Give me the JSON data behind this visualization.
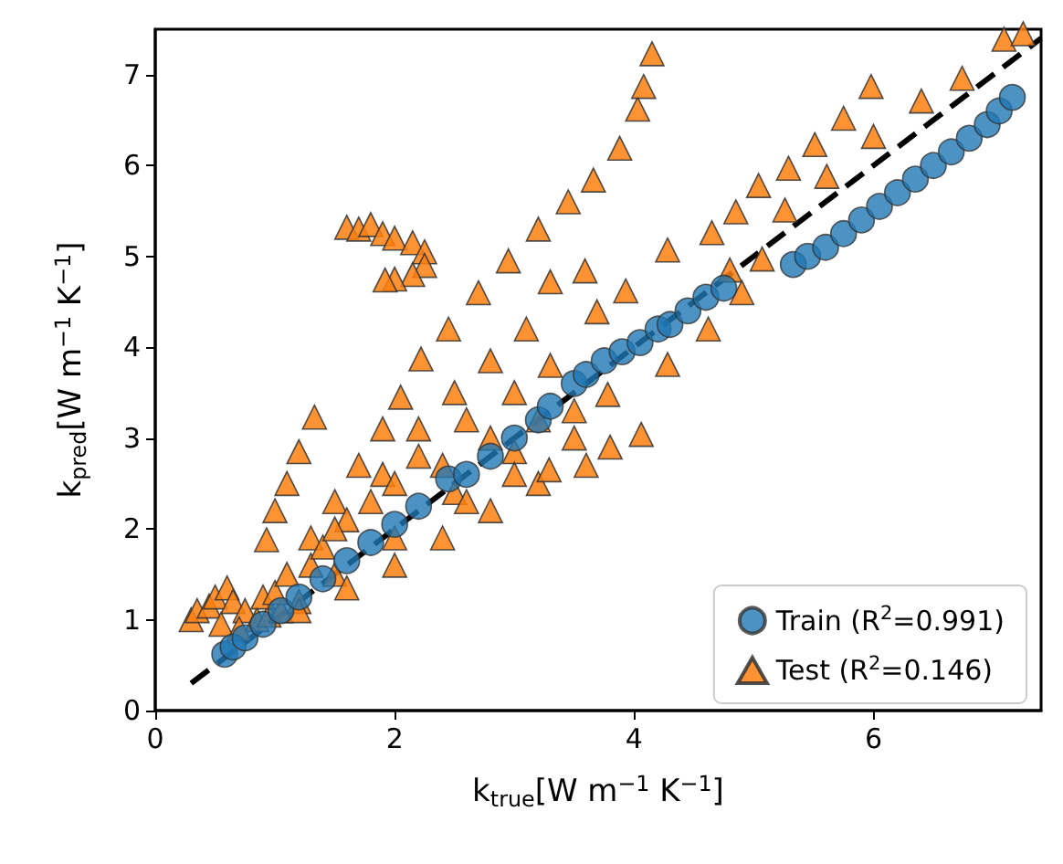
{
  "chart_data": {
    "type": "scatter",
    "xlabel": "k$_{true}$[W m$^{−1}$ K$^{−1}$]",
    "ylabel": "k$_{pred}$[W m$^{−1}$ K$^{−1}$]",
    "xlim": [
      0,
      7.4
    ],
    "ylim": [
      0,
      7.5
    ],
    "xticks": [
      0,
      2,
      4,
      6
    ],
    "yticks": [
      0,
      1,
      2,
      3,
      4,
      5,
      6,
      7
    ],
    "grid": false,
    "legend": "bottom right",
    "series": [
      {
        "type": "line",
        "color": "#000000",
        "line_style": "dashed",
        "marker": "none",
        "x": [
          0.3,
          7.4
        ],
        "values": [
          0.3,
          7.4
        ]
      },
      {
        "name": "Test (R$^{2}$=0.146)",
        "color": "#ff7f0e",
        "marker": "triangle",
        "x": [
          0.3,
          0.35,
          0.45,
          0.5,
          0.6,
          0.65,
          0.75,
          0.85,
          0.95,
          1.05,
          1.2,
          0.55,
          0.7,
          0.9,
          1.0,
          0.93,
          1.0,
          1.1,
          1.2,
          1.33,
          1.6,
          1.7,
          1.8,
          1.9,
          2.0,
          2.15,
          2.25,
          2.25,
          2.15,
          2.0,
          1.92,
          1.1,
          1.3,
          1.5,
          1.7,
          1.9,
          2.05,
          2.22,
          2.45,
          2.7,
          2.95,
          3.2,
          3.45,
          3.66,
          3.88,
          4.03,
          4.08,
          4.15,
          1.3,
          1.6,
          1.9,
          2.2,
          2.5,
          2.8,
          3.1,
          3.3,
          3.59,
          3.69,
          3.93,
          4.28,
          4.65,
          4.85,
          5.04,
          5.29,
          5.51,
          5.75,
          5.98,
          4.8,
          5.07,
          5.26,
          5.61,
          6.0,
          6.4,
          6.74,
          7.09,
          7.25,
          1.5,
          2.0,
          2.5,
          3.0,
          3.5,
          3.78,
          4.28,
          4.62,
          4.9,
          1.2,
          1.6,
          2.0,
          2.4,
          2.8,
          3.2,
          3.29,
          3.6,
          4.06,
          1.4,
          1.8,
          2.2,
          2.6,
          3.0,
          3.3,
          1.5,
          2.0,
          2.4,
          2.8,
          3.2,
          3.5,
          3.8,
          2.6,
          3.0
        ],
        "values": [
          1.0,
          1.1,
          1.15,
          1.25,
          1.35,
          1.2,
          1.1,
          1.0,
          1.05,
          1.1,
          1.2,
          0.95,
          0.9,
          1.25,
          1.3,
          1.88,
          2.2,
          2.5,
          2.85,
          3.23,
          5.32,
          5.3,
          5.35,
          5.25,
          5.2,
          5.15,
          5.05,
          4.9,
          4.8,
          4.75,
          4.74,
          1.5,
          1.9,
          2.3,
          2.7,
          3.1,
          3.45,
          3.87,
          4.2,
          4.6,
          4.95,
          5.3,
          5.6,
          5.84,
          6.19,
          6.62,
          6.87,
          7.23,
          1.6,
          2.1,
          2.6,
          3.1,
          3.5,
          3.85,
          4.2,
          4.72,
          4.84,
          4.39,
          4.62,
          5.07,
          5.26,
          5.49,
          5.78,
          5.97,
          6.23,
          6.52,
          6.87,
          4.85,
          4.97,
          5.51,
          5.88,
          6.32,
          6.71,
          6.96,
          7.39,
          7.45,
          1.5,
          1.9,
          2.4,
          2.85,
          3.3,
          3.48,
          3.81,
          4.2,
          4.6,
          1.1,
          1.35,
          1.6,
          1.9,
          2.2,
          2.5,
          2.65,
          2.7,
          3.04,
          1.8,
          2.3,
          2.8,
          3.2,
          3.5,
          3.8,
          2.0,
          2.5,
          2.7,
          3.0,
          3.2,
          3.0,
          2.9,
          2.3,
          2.6
        ]
      },
      {
        "name": "Train (R$^{2}$=0.991)",
        "color": "#1f77b4",
        "marker": "circle",
        "x": [
          0.58,
          0.65,
          0.75,
          0.9,
          1.05,
          1.2,
          1.4,
          1.6,
          1.8,
          2.0,
          2.2,
          2.45,
          2.6,
          2.8,
          3.0,
          3.2,
          3.3,
          3.5,
          3.6,
          3.75,
          3.9,
          4.05,
          4.2,
          4.3,
          4.45,
          4.6,
          4.75,
          5.33,
          5.45,
          5.6,
          5.75,
          5.9,
          6.05,
          6.2,
          6.35,
          6.5,
          6.65,
          6.8,
          6.95,
          7.05,
          7.16
        ],
        "values": [
          0.62,
          0.7,
          0.8,
          0.95,
          1.1,
          1.25,
          1.45,
          1.65,
          1.85,
          2.05,
          2.25,
          2.55,
          2.6,
          2.8,
          3.0,
          3.2,
          3.35,
          3.6,
          3.7,
          3.85,
          3.95,
          4.05,
          4.2,
          4.25,
          4.4,
          4.55,
          4.65,
          4.91,
          5.0,
          5.1,
          5.25,
          5.4,
          5.55,
          5.7,
          5.85,
          6.0,
          6.15,
          6.3,
          6.45,
          6.6,
          6.75
        ]
      }
    ]
  }
}
